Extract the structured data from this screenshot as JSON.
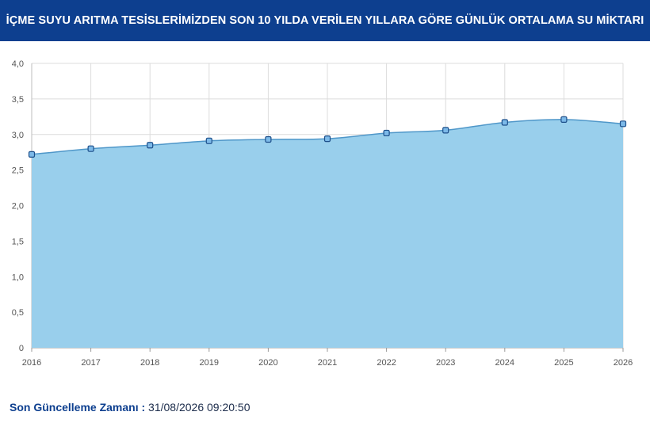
{
  "header": {
    "title": "İÇME SUYU ARITMA TESİSLERİMİZDEN SON 10 YILDA VERİLEN YILLARA GÖRE GÜNLÜK ORTALAMA SU MİKTARI"
  },
  "colors": {
    "header_bg": "#0d3f8f",
    "area_fill": "#99cfec",
    "line": "#4f97c9",
    "marker_fill": "#7cb9e8",
    "marker_stroke": "#1d4f8a"
  },
  "chart_data": {
    "type": "area",
    "title": "",
    "xlabel": "",
    "ylabel": "",
    "x": [
      "2016",
      "2017",
      "2018",
      "2019",
      "2020",
      "2021",
      "2022",
      "2023",
      "2024",
      "2025",
      "2026"
    ],
    "series": [
      {
        "values": [
          2.72,
          2.8,
          2.85,
          2.91,
          2.93,
          2.94,
          3.02,
          3.06,
          3.17,
          3.21,
          3.15
        ]
      }
    ],
    "ylim": [
      0,
      4
    ],
    "yticks": [
      0,
      0.5,
      1.0,
      1.5,
      2.0,
      2.5,
      3.0,
      3.5,
      4.0
    ],
    "ytick_labels": [
      "0",
      "0,5",
      "1,0",
      "1,5",
      "2,0",
      "2,5",
      "3,0",
      "3,5",
      "4,0"
    ],
    "grid": true,
    "legend": "none"
  },
  "footer": {
    "label": "Son Güncelleme Zamanı :",
    "value": "31/08/2026 09:20:50"
  }
}
